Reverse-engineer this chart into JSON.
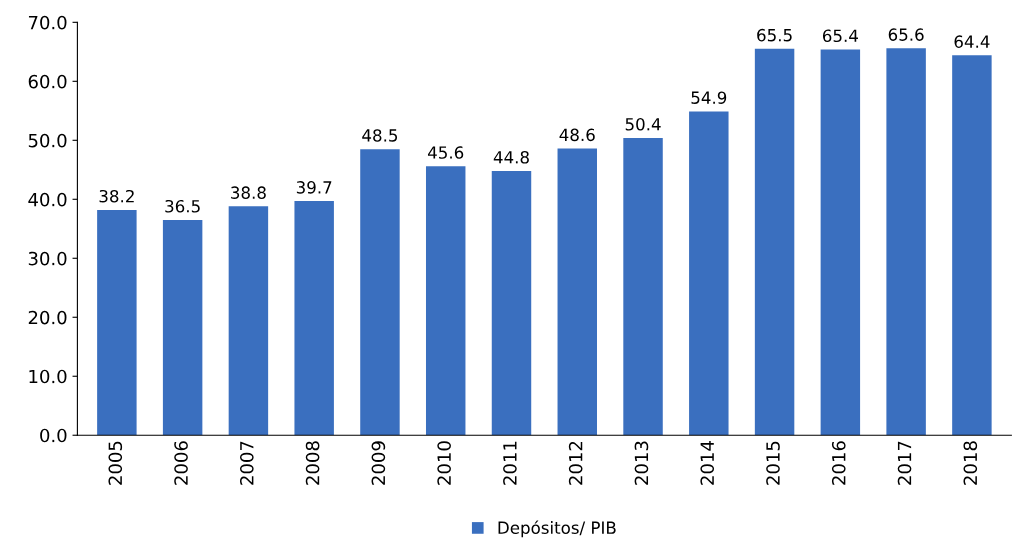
{
  "chart_data": {
    "type": "bar",
    "categories": [
      "2005",
      "2006",
      "2007",
      "2008",
      "2009",
      "2010",
      "2011",
      "2012",
      "2013",
      "2014",
      "2015",
      "2016",
      "2017",
      "2018"
    ],
    "series": [
      {
        "name": "Depósitos/ PIB",
        "color": "#3a6fbf",
        "values": [
          38.2,
          36.5,
          38.8,
          39.7,
          48.5,
          45.6,
          44.8,
          48.6,
          50.4,
          54.9,
          65.5,
          65.4,
          65.6,
          64.4
        ]
      }
    ],
    "ylim": [
      0,
      70
    ],
    "yticks": [
      {
        "value": 0,
        "label": "0.0"
      },
      {
        "value": 10,
        "label": "10.0"
      },
      {
        "value": 20,
        "label": "20.0"
      },
      {
        "value": 30,
        "label": "30.0"
      },
      {
        "value": 40,
        "label": "40.0"
      },
      {
        "value": 50,
        "label": "50.0"
      },
      {
        "value": 60,
        "label": "60.0"
      },
      {
        "value": 70,
        "label": "70.0"
      }
    ],
    "data_labels": true,
    "legend": "bottom",
    "grid": false
  }
}
